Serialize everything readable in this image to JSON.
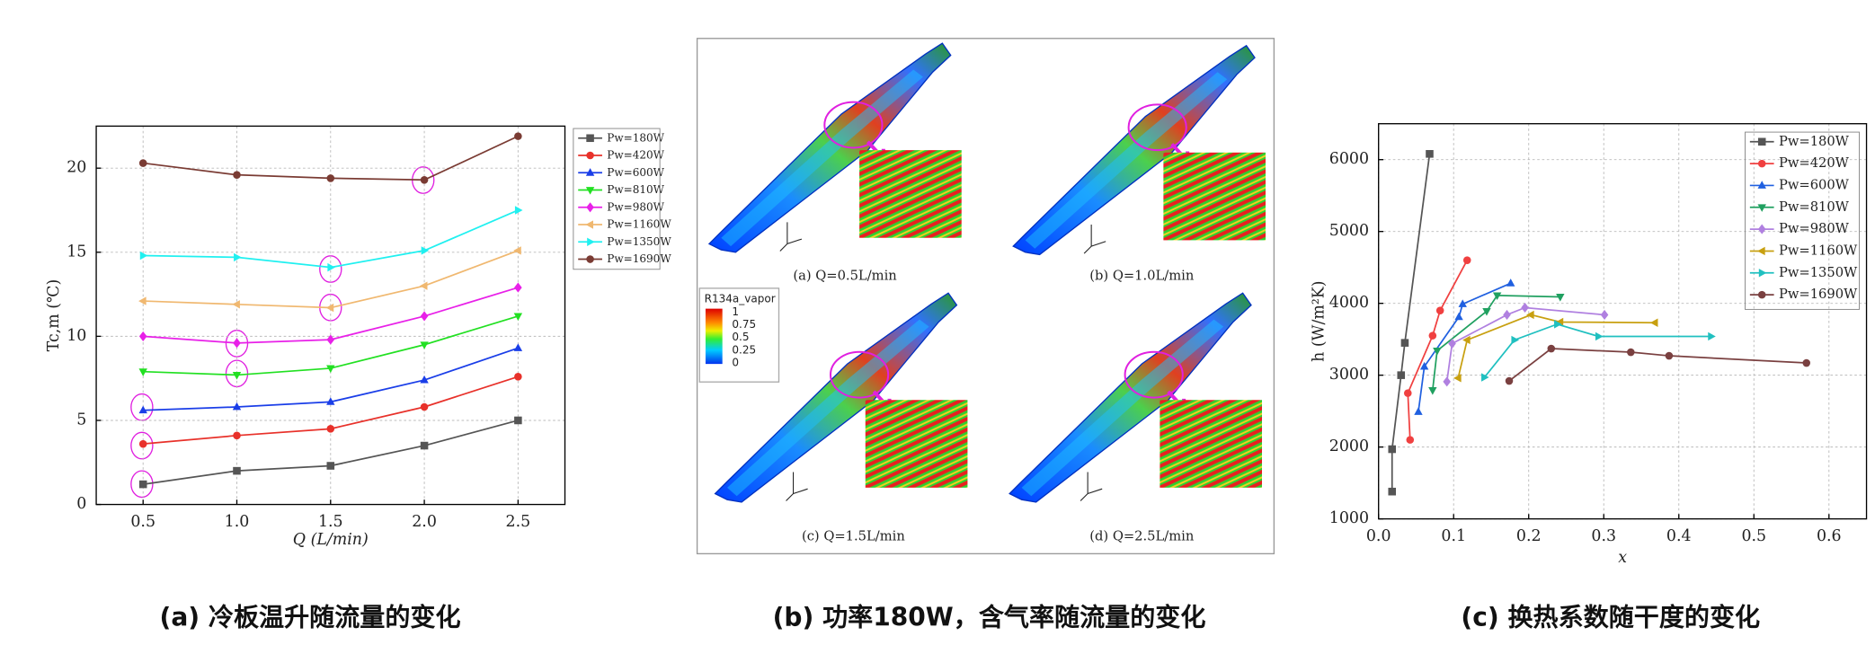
{
  "chart_data": [
    {
      "type": "line",
      "title": "(a) 冷板温升随流量的变化",
      "x_label": "Q (L/min)",
      "y_label": "Tc,m (℃)",
      "x": [
        0.5,
        1.0,
        1.5,
        2.0,
        2.5
      ],
      "xlim": [
        0.25,
        2.75
      ],
      "xticks": [
        0.5,
        {
          "value": 1,
          "label": "1.0"
        },
        1.5,
        {
          "value": 2,
          "label": "2.0"
        },
        2.5
      ],
      "ylim": [
        0,
        22.5
      ],
      "yticks": [
        0,
        5,
        10,
        15,
        20
      ],
      "grid": true,
      "legend": "right",
      "series": [
        {
          "name": "Pw=180W",
          "color": "#555555",
          "marker": "square",
          "values": [
            1.2,
            2.0,
            2.3,
            3.5,
            5.0
          ]
        },
        {
          "name": "Pw=420W",
          "color": "#e8312a",
          "marker": "circle",
          "values": [
            3.6,
            4.1,
            4.5,
            5.8,
            7.6
          ]
        },
        {
          "name": "Pw=600W",
          "color": "#1a3ee8",
          "marker": "triangle-up",
          "values": [
            5.6,
            5.8,
            6.1,
            7.4,
            9.3
          ]
        },
        {
          "name": "Pw=810W",
          "color": "#22e022",
          "marker": "triangle-down",
          "values": [
            7.9,
            7.7,
            8.1,
            9.5,
            11.2
          ]
        },
        {
          "name": "Pw=980W",
          "color": "#e820e8",
          "marker": "diamond",
          "values": [
            10.0,
            9.6,
            9.8,
            11.2,
            12.9
          ]
        },
        {
          "name": "Pw=1160W",
          "color": "#f0b870",
          "marker": "triangle-left",
          "values": [
            12.1,
            11.9,
            11.7,
            13.0,
            15.1
          ]
        },
        {
          "name": "Pw=1350W",
          "color": "#20f0f0",
          "marker": "triangle-right",
          "values": [
            14.8,
            14.7,
            14.1,
            15.1,
            17.5
          ]
        },
        {
          "name": "Pw=1690W",
          "color": "#7a3b33",
          "marker": "circle",
          "values": [
            20.3,
            19.6,
            19.4,
            19.3,
            21.9
          ]
        }
      ]
    },
    {
      "type": "line",
      "title": "(c) 换热系数随干度的变化",
      "x_label": "x",
      "y_label": "h (W/m²K)",
      "xlim": [
        0,
        0.65
      ],
      "xticks": [
        {
          "value": 0,
          "label": "0.0"
        },
        0.1,
        0.2,
        0.3,
        0.4,
        0.5,
        0.6
      ],
      "ylim": [
        1000,
        6500
      ],
      "yticks": [
        1000,
        2000,
        3000,
        4000,
        5000,
        6000
      ],
      "grid": true,
      "legend": "upper right",
      "series": [
        {
          "name": "Pw=180W",
          "color": "#555555",
          "marker": "square",
          "x": [
            0.018,
            0.018,
            0.03,
            0.035,
            0.068
          ],
          "values": [
            1380,
            1970,
            3000,
            3450,
            6080
          ]
        },
        {
          "name": "Pw=420W",
          "color": "#f04040",
          "marker": "circle",
          "x": [
            0.042,
            0.039,
            0.072,
            0.082,
            0.118
          ],
          "values": [
            2100,
            2750,
            3550,
            3900,
            4600
          ]
        },
        {
          "name": "Pw=600W",
          "color": "#2060e0",
          "marker": "triangle-up",
          "x": [
            0.053,
            0.061,
            0.107,
            0.112,
            0.176
          ],
          "values": [
            2490,
            3120,
            3810,
            3990,
            4280
          ]
        },
        {
          "name": "Pw=810W",
          "color": "#20a060",
          "marker": "triangle-down",
          "x": [
            0.072,
            0.078,
            0.144,
            0.158,
            0.242
          ],
          "values": [
            2790,
            3340,
            3890,
            4110,
            4090
          ]
        },
        {
          "name": "Pw=980W",
          "color": "#b080e0",
          "marker": "diamond",
          "x": [
            0.091,
            0.098,
            0.171,
            0.195,
            0.301
          ],
          "values": [
            2910,
            3440,
            3840,
            3940,
            3840
          ]
        },
        {
          "name": "Pw=1160W",
          "color": "#c8a010",
          "marker": "triangle-left",
          "x": [
            0.106,
            0.118,
            0.203,
            0.242,
            0.368
          ],
          "values": [
            2960,
            3490,
            3840,
            3740,
            3730
          ]
        },
        {
          "name": "Pw=1350W",
          "color": "#20c0c0",
          "marker": "triangle-right",
          "x": [
            0.141,
            0.181,
            0.238,
            0.293,
            0.443
          ],
          "values": [
            2970,
            3490,
            3710,
            3540,
            3540
          ]
        },
        {
          "name": "Pw=1690W",
          "color": "#7a4040",
          "marker": "circle",
          "x": [
            0.174,
            0.23,
            0.336,
            0.387,
            0.57
          ],
          "values": [
            2920,
            3370,
            3320,
            3270,
            3170
          ]
        }
      ]
    }
  ],
  "panel_b": {
    "title": "(b) 功率180W，含气率随流量的变化",
    "captions": [
      "(a) Q=0.5L/min",
      "(b) Q=1.0L/min",
      "(c) Q=1.5L/min",
      "(d) Q=2.5L/min"
    ],
    "colorbar": {
      "title": "R134a_vapor",
      "ticks": [
        1,
        0.75,
        0.5,
        0.25,
        0
      ]
    }
  }
}
